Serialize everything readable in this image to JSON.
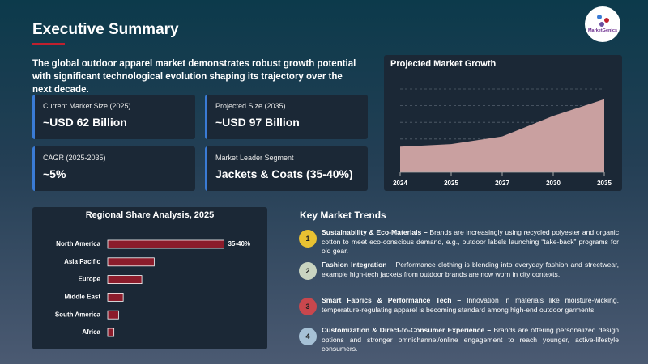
{
  "header": {
    "title": "Executive Summary",
    "intro": "The global outdoor apparel market demonstrates robust growth potential with significant technological evolution shaping its trajectory over the next decade.",
    "logo": "MarketGenics"
  },
  "stats": [
    {
      "label": "Current Market Size (2025)",
      "value": "~USD 62 Billion"
    },
    {
      "label": "Projected Size (2035)",
      "value": "~USD 97 Billion"
    },
    {
      "label": "CAGR (2025-2035)",
      "value": "~5%"
    },
    {
      "label": "Market Leader Segment",
      "value": "Jackets & Coats (35-40%)"
    }
  ],
  "trends": {
    "title": "Key Market Trends",
    "items": [
      {
        "number": "1",
        "color": "#e8c132",
        "title": "Sustainability & Eco-Materials –",
        "text": "Brands are increasingly using recycled polyester and organic cotton to meet eco-conscious demand, e.g., outdoor labels launching “take-back” programs for old gear."
      },
      {
        "number": "2",
        "color": "#c9d4c0",
        "title": "Fashion Integration –",
        "text": "Performance clothing is blending into everyday fashion and streetwear, example high-tech jackets from outdoor brands are now worn in city contexts."
      },
      {
        "number": "3",
        "color": "#c9474d",
        "title": "Smart Fabrics & Performance Tech –",
        "text": "Innovation in materials like moisture-wicking, temperature-regulating apparel is becoming standard among high-end outdoor garments."
      },
      {
        "number": "4",
        "color": "#a6c1d6",
        "title": "Customization & Direct-to-Consumer Experience –",
        "text": "Brands are offering personalized design options and stronger omnichannel/online engagement to reach younger, active-lifestyle consumers."
      }
    ]
  },
  "chart_data": [
    {
      "type": "area",
      "title": "Projected Market Growth",
      "categories": [
        "2024",
        "2025",
        "2027",
        "2030",
        "2035"
      ],
      "values": [
        60,
        62,
        68,
        84,
        97
      ],
      "color": "#c9a0a0",
      "ylim": [
        40,
        105
      ],
      "grid": true
    },
    {
      "type": "bar",
      "orientation": "horizontal",
      "title": "Regional Share Analysis, 2025",
      "categories": [
        "North America",
        "Asia Pacific",
        "Europe",
        "Middle East",
        "South America",
        "Africa"
      ],
      "values": [
        37.5,
        15,
        11,
        5,
        3.5,
        2
      ],
      "value_labels": [
        "35-40%",
        null,
        null,
        null,
        null,
        null
      ],
      "color": "#8b1c2b",
      "xlim": [
        0,
        40
      ]
    }
  ]
}
